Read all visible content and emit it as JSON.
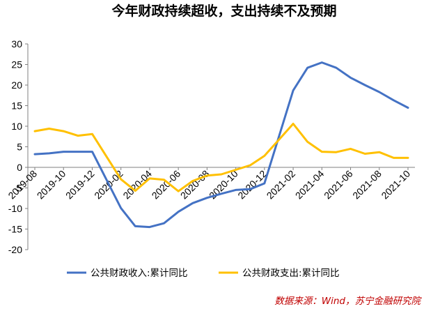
{
  "chart_data": {
    "type": "line",
    "title": "今年财政持续超收，支出持续不及预期",
    "xlabel": "",
    "ylabel": "",
    "ylim": [
      -20,
      30
    ],
    "y_ticks": [
      "30",
      "25",
      "20",
      "15",
      "10",
      "5",
      "0",
      "-5",
      "-10",
      "-15",
      "-20"
    ],
    "x_tick_labels": [
      "2019-08",
      "2019-10",
      "2019-12",
      "2020-02",
      "2020-04",
      "2020-06",
      "2020-08",
      "2020-10",
      "2020-12",
      "2021-02",
      "2021-04",
      "2021-06",
      "2021-08",
      "2021-10"
    ],
    "grid": false,
    "legend_position": "bottom",
    "x": [
      "2019-08",
      "2019-09",
      "2019-10",
      "2019-11",
      "2019-12",
      "2020-01",
      "2020-02",
      "2020-03",
      "2020-04",
      "2020-05",
      "2020-06",
      "2020-07",
      "2020-08",
      "2020-09",
      "2020-10",
      "2020-11",
      "2020-12",
      "2021-01",
      "2021-02",
      "2021-03",
      "2021-04",
      "2021-05",
      "2021-06",
      "2021-07",
      "2021-08",
      "2021-09",
      "2021-10"
    ],
    "series": [
      {
        "name": "公共财政收入:累计同比",
        "color": "#4472c4",
        "values": [
          3.2,
          3.4,
          3.8,
          3.8,
          3.8,
          null,
          -9.9,
          -14.3,
          -14.5,
          -13.6,
          -10.8,
          -8.7,
          -7.4,
          -6.4,
          -5.5,
          -5.3,
          -3.9,
          null,
          18.7,
          24.2,
          25.5,
          24.2,
          21.8,
          20.0,
          18.3,
          16.3,
          14.5
        ]
      },
      {
        "name": "公共财政支出:累计同比",
        "color": "#ffc000",
        "values": [
          8.8,
          9.4,
          8.8,
          7.7,
          8.1,
          null,
          -2.9,
          -5.7,
          -2.7,
          -3.0,
          -5.8,
          -3.3,
          -2.0,
          -1.7,
          -0.6,
          0.5,
          2.8,
          null,
          10.6,
          6.2,
          3.8,
          3.7,
          4.5,
          3.3,
          3.7,
          2.3,
          2.3
        ]
      }
    ]
  },
  "source": {
    "text": "数据来源：Wind，苏宁金融研究院"
  }
}
